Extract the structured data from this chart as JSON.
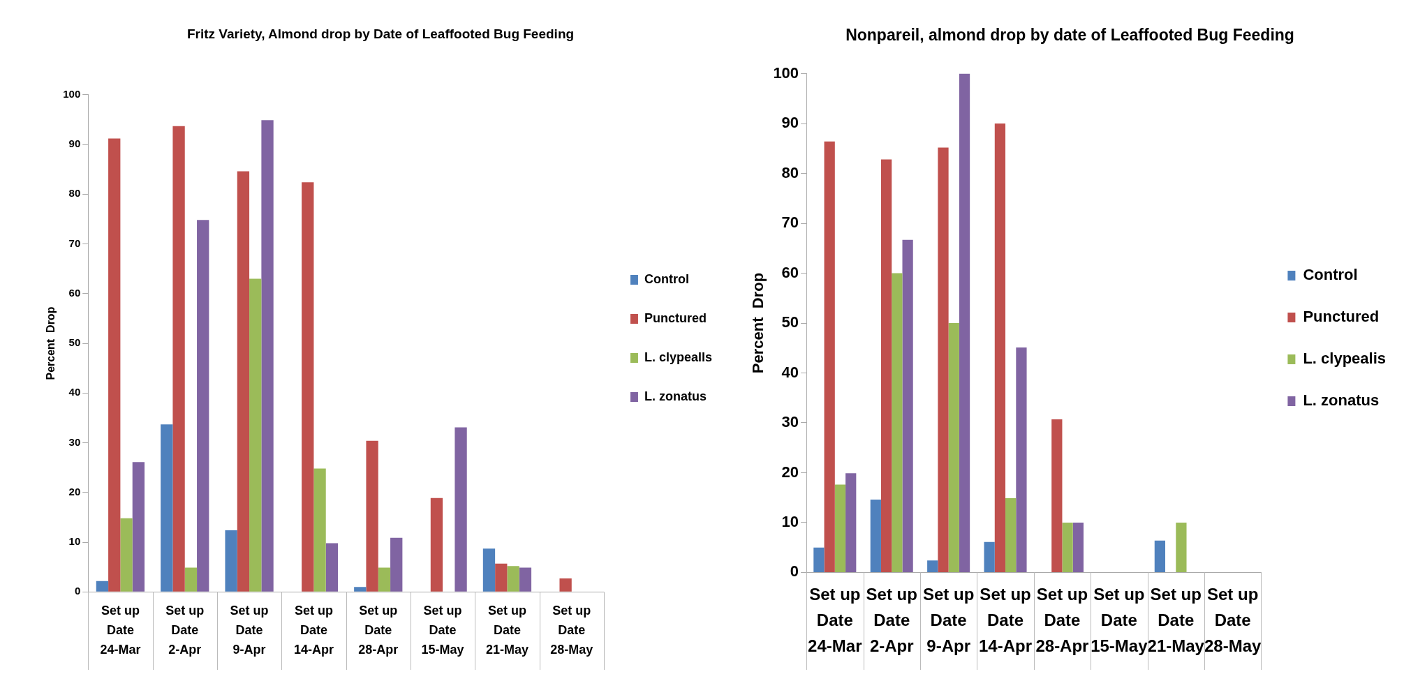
{
  "chart_data": [
    {
      "type": "bar",
      "title": "Fritz Variety, Almond drop by Date of Leaffooted Bug Feeding",
      "ylabel": "Percent  Drop",
      "categories": [
        "Set up\nDate\n24-Mar",
        "Set up\nDate\n2-Apr",
        "Set up\nDate\n9-Apr",
        "Set up\nDate\n14-Apr",
        "Set up\nDate\n28-Apr",
        "Set up\nDate\n15-May",
        "Set up\nDate\n21-May",
        "Set up\nDate\n28-May"
      ],
      "series": [
        {
          "name": "Control",
          "color": "#4f81bd",
          "values": [
            2.2,
            33.7,
            12.4,
            0,
            1,
            0,
            8.7,
            0
          ]
        },
        {
          "name": "Punctured",
          "color": "#c0504d",
          "values": [
            91.2,
            93.7,
            84.6,
            82.4,
            30.4,
            18.9,
            5.7,
            2.7
          ]
        },
        {
          "name": "L. clypealls",
          "color": "#9bbb59",
          "values": [
            14.8,
            4.9,
            63,
            24.8,
            4.9,
            0,
            5.2,
            0
          ]
        },
        {
          "name": "L. zonatus",
          "color": "#8064a2",
          "values": [
            26.1,
            74.8,
            94.9,
            9.8,
            10.9,
            33.1,
            4.9,
            0
          ]
        }
      ],
      "ylim": [
        0,
        100
      ],
      "yticks": [
        0,
        10,
        20,
        30,
        40,
        50,
        60,
        70,
        80,
        90,
        100
      ],
      "grid": false,
      "legend": "right"
    },
    {
      "type": "bar",
      "title": "Nonpareil, almond drop by date of Leaffooted Bug Feeding",
      "ylabel": "Percent  Drop",
      "categories": [
        "Set up\nDate\n24-Mar",
        "Set up\nDate\n2-Apr",
        "Set up\nDate\n9-Apr",
        "Set up\nDate\n14-Apr",
        "Set up\nDate\n28-Apr",
        "Set up\nDate\n15-May",
        "Set up\nDate\n21-May",
        "Set up\nDate\n28-May"
      ],
      "series": [
        {
          "name": "Control",
          "color": "#4f81bd",
          "values": [
            5,
            14.6,
            2.4,
            6.1,
            0,
            0,
            6.4,
            null
          ]
        },
        {
          "name": "Punctured",
          "color": "#c0504d",
          "values": [
            86.4,
            82.8,
            85.2,
            90,
            30.7,
            0,
            0,
            null
          ]
        },
        {
          "name": "L. clypealis",
          "color": "#9bbb59",
          "values": [
            17.6,
            60,
            50,
            14.9,
            10,
            0,
            10,
            null
          ]
        },
        {
          "name": "L. zonatus",
          "color": "#8064a2",
          "values": [
            19.9,
            66.7,
            100,
            45.1,
            10,
            0,
            0,
            null
          ]
        }
      ],
      "ylim": [
        0,
        100
      ],
      "yticks": [
        0,
        10,
        20,
        30,
        40,
        50,
        60,
        70,
        80,
        90,
        100
      ],
      "grid": false,
      "legend": "right"
    }
  ]
}
